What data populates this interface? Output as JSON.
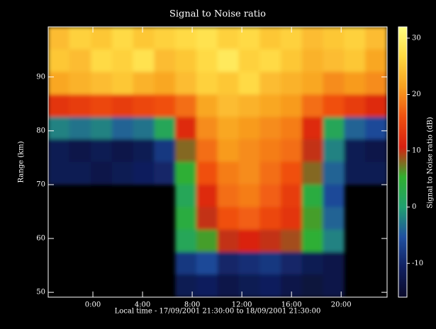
{
  "chart_data": {
    "type": "heatmap",
    "title": "Signal to Noise ratio",
    "x_label": "Local time - 17/09/2001  21:30:00 to 18/09/2001  21:30:00",
    "y_label": "Range (km)",
    "colorbar_label": "Signal to Noise ratio (dB)",
    "x": [
      -2.8,
      -1.0,
      0.7,
      2.4,
      4.1,
      5.8,
      7.5,
      9.2,
      10.9,
      12.6,
      14.3,
      16.0,
      17.7,
      19.4,
      21.1,
      22.8
    ],
    "y": [
      97.2,
      93.0,
      88.8,
      84.6,
      80.5,
      76.3,
      72.1,
      67.9,
      63.7,
      59.5,
      55.4,
      51.2
    ],
    "z": [
      [
        24,
        26,
        25,
        27,
        25,
        26,
        27,
        28,
        26,
        27,
        25,
        26,
        24,
        25,
        26,
        24
      ],
      [
        25,
        24,
        27,
        26,
        28,
        24,
        25,
        27,
        29,
        26,
        27,
        25,
        23,
        24,
        25,
        22
      ],
      [
        22,
        23,
        24,
        25,
        23,
        22,
        24,
        26,
        25,
        27,
        24,
        23,
        22,
        20,
        21,
        20
      ],
      [
        13,
        14,
        15,
        14,
        15,
        16,
        18,
        22,
        24,
        23,
        22,
        21,
        18,
        16,
        14,
        12
      ],
      [
        -2,
        -3,
        -2,
        -4,
        -3,
        2,
        12,
        20,
        22,
        21,
        20,
        19,
        12,
        2,
        -4,
        -6
      ],
      [
        -12,
        -13,
        -12,
        -13,
        -12,
        -8,
        8,
        18,
        21,
        20,
        19,
        18,
        10,
        -2,
        -12,
        -13
      ],
      [
        -12,
        -12,
        -13,
        -12,
        -11,
        -10,
        5,
        16,
        19,
        20,
        18,
        16,
        8,
        -4,
        -12,
        -12
      ],
      [
        null,
        null,
        null,
        null,
        null,
        null,
        2,
        12,
        18,
        19,
        17,
        14,
        4,
        -6,
        null,
        null
      ],
      [
        null,
        null,
        null,
        null,
        null,
        null,
        4,
        10,
        16,
        17,
        15,
        13,
        6,
        -4,
        null,
        null
      ],
      [
        null,
        null,
        null,
        null,
        null,
        null,
        2,
        6,
        10,
        11,
        10,
        9,
        5,
        -2,
        null,
        null
      ],
      [
        null,
        null,
        null,
        null,
        null,
        null,
        -8,
        -6,
        -10,
        -9,
        -8,
        -10,
        -12,
        -13,
        null,
        null
      ],
      [
        null,
        null,
        null,
        null,
        null,
        null,
        -12,
        -11,
        -13,
        -12,
        -11,
        -13,
        -14,
        -13,
        null,
        null
      ]
    ],
    "xlim": [
      -3.6,
      23.7
    ],
    "xticks": [
      {
        "value": 0,
        "label": "0:00"
      },
      {
        "value": 4,
        "label": "4:00"
      },
      {
        "value": 8,
        "label": "8:00"
      },
      {
        "value": 12,
        "label": "12:00"
      },
      {
        "value": 16,
        "label": "16:00"
      },
      {
        "value": 20,
        "label": "20:00"
      }
    ],
    "ylim": [
      49.1,
      99.3
    ],
    "yticks": [
      50,
      60,
      70,
      80,
      90
    ],
    "clim": [
      -16,
      32
    ],
    "cticks": [
      -10,
      0,
      10,
      20,
      30
    ],
    "colorscale": [
      "#0a0a2a",
      "#102060",
      "#2050a0",
      "#20a070",
      "#30b030",
      "#d82010",
      "#f05010",
      "#f8a020",
      "#ffd840",
      "#ffff80"
    ]
  }
}
